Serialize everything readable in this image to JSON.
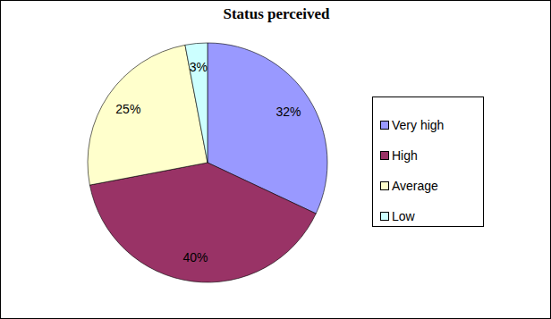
{
  "chart_data": {
    "type": "pie",
    "title": "Status perceived",
    "categories": [
      "Very high",
      "High",
      "Average",
      "Low"
    ],
    "values": [
      32,
      40,
      25,
      3
    ],
    "value_labels": [
      "32%",
      "40%",
      "25%",
      "3%"
    ],
    "colors": [
      "#9999ff",
      "#993366",
      "#ffffcc",
      "#ccffff"
    ],
    "data_labels": true,
    "legend": "right"
  }
}
